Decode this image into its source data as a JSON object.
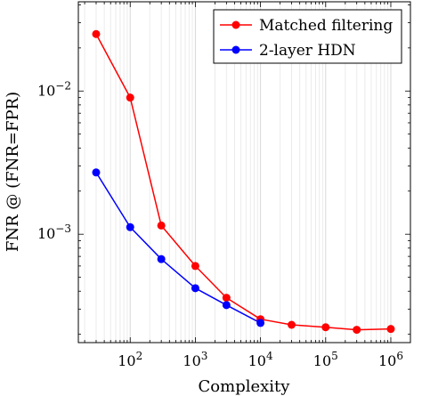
{
  "chart_data": {
    "type": "line",
    "xlabel": "Complexity",
    "ylabel": "FNR @ (FNR=FPR)",
    "xscale": "log",
    "yscale": "log",
    "xlim": [
      16,
      2000000
    ],
    "ylim": [
      0.000175,
      0.042
    ],
    "grid": "x-major-and-minor",
    "legend_position": "top-right",
    "x_ticks": [
      {
        "value": 100,
        "base": "10",
        "exp": "2"
      },
      {
        "value": 1000,
        "base": "10",
        "exp": "3"
      },
      {
        "value": 10000,
        "base": "10",
        "exp": "4"
      },
      {
        "value": 100000,
        "base": "10",
        "exp": "5"
      },
      {
        "value": 1000000,
        "base": "10",
        "exp": "6"
      }
    ],
    "y_ticks": [
      {
        "value": 0.001,
        "base": "10",
        "exp": "−3"
      },
      {
        "value": 0.01,
        "base": "10",
        "exp": "−2"
      }
    ],
    "series": [
      {
        "name": "Matched filtering",
        "color": "#ff0000",
        "x": [
          30,
          100,
          300,
          1000,
          3000,
          10000,
          30000,
          100000,
          300000,
          1000000
        ],
        "y": [
          0.025,
          0.009,
          0.00115,
          0.0006,
          0.00036,
          0.000255,
          0.000233,
          0.000224,
          0.000215,
          0.000218
        ]
      },
      {
        "name": "2-layer HDN",
        "color": "#0000ff",
        "x": [
          30,
          100,
          300,
          1000,
          3000,
          10000
        ],
        "y": [
          0.0027,
          0.00112,
          0.00067,
          0.00042,
          0.00032,
          0.00024
        ]
      }
    ]
  }
}
